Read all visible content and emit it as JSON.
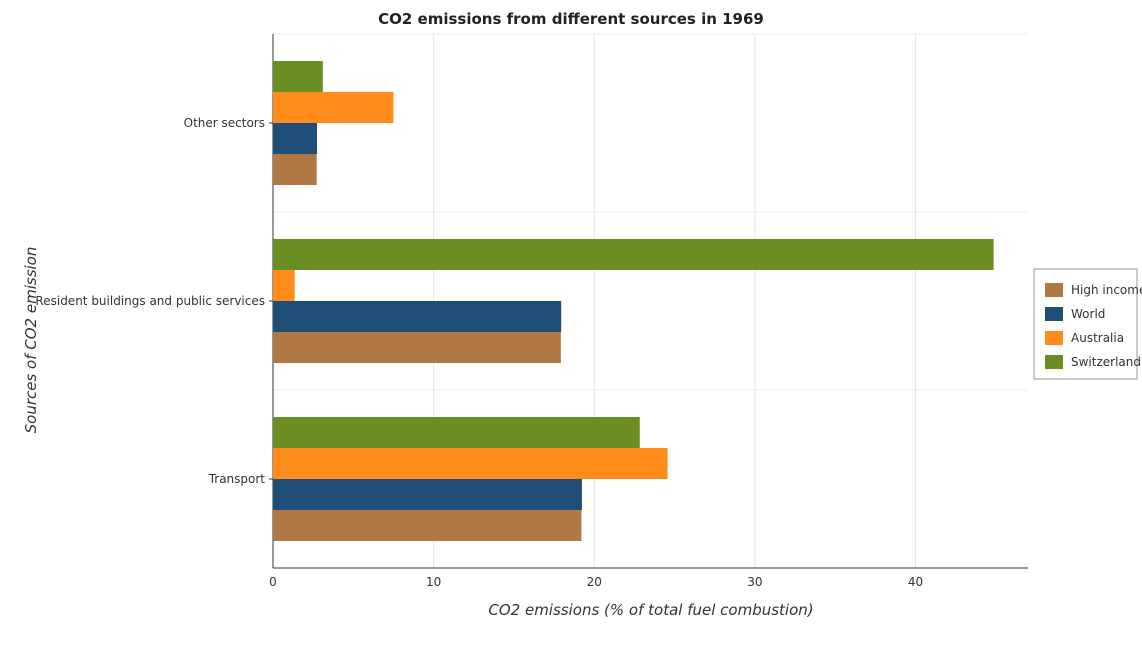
{
  "chart_data": {
    "type": "bar",
    "orientation": "horizontal",
    "title": "CO2 emissions from different sources in 1969",
    "xlabel": "CO2 emissions (% of total fuel combustion)",
    "ylabel": "Sources of CO2 emission",
    "xlim": [
      0,
      47
    ],
    "xticks": [
      0,
      10,
      20,
      30,
      40
    ],
    "grid": true,
    "legend_position": "right",
    "categories": [
      "Other sectors",
      "Resident buildings and public services",
      "Transport"
    ],
    "series": [
      {
        "name": "High income",
        "color": "#b07845",
        "values": [
          2.72,
          17.92,
          19.2
        ]
      },
      {
        "name": "World",
        "color": "#1f4e79",
        "values": [
          2.74,
          17.94,
          19.23
        ]
      },
      {
        "name": "Australia",
        "color": "#ff8c1a",
        "values": [
          7.5,
          1.35,
          24.56
        ]
      },
      {
        "name": "Switzerland",
        "color": "#6b8e23",
        "values": [
          3.1,
          44.86,
          22.83
        ]
      }
    ]
  }
}
